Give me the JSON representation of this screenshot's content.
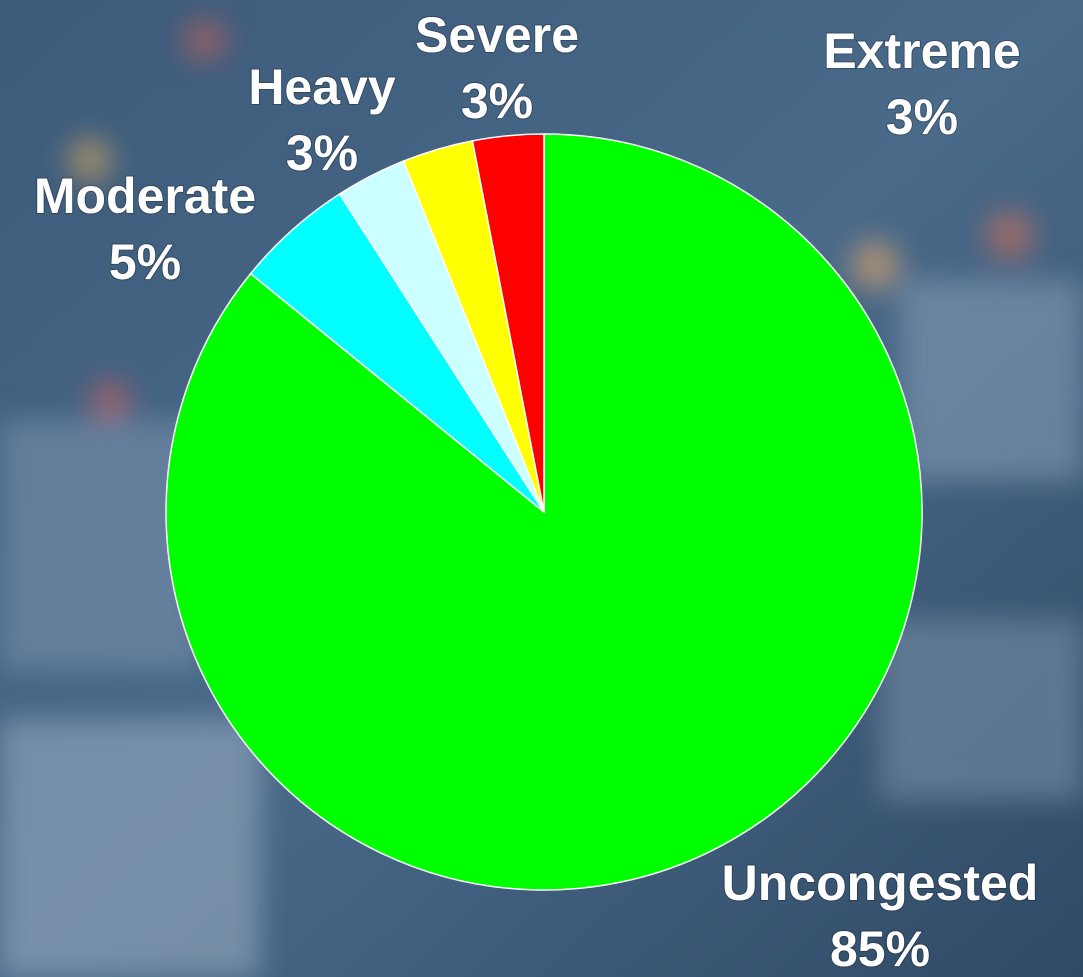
{
  "chart_data": {
    "type": "pie",
    "categories": [
      "Uncongested",
      "Moderate",
      "Heavy",
      "Severe",
      "Extreme"
    ],
    "values": [
      85,
      5,
      3,
      3,
      3
    ],
    "value_labels": [
      "85%",
      "5%",
      "3%",
      "3%",
      "3%"
    ],
    "colors": [
      "#00ff00",
      "#00ffff",
      "#ccffff",
      "#ffff00",
      "#ff0000"
    ]
  }
}
